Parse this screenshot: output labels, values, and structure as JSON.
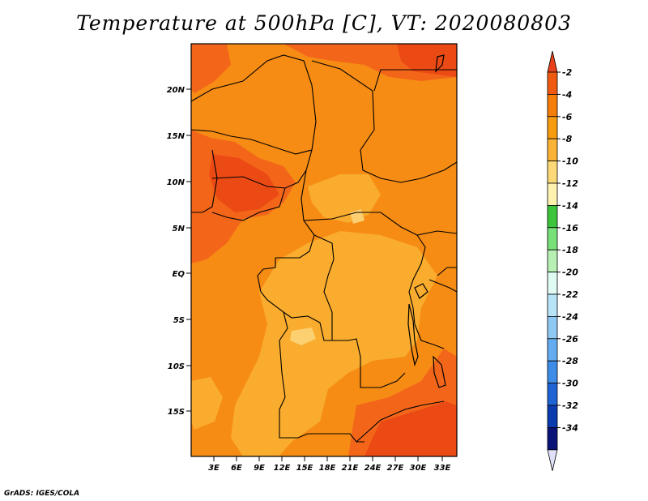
{
  "title": "Temperature at 500hPa [C], VT: 2020080803",
  "credit": "GrADS: IGES/COLA",
  "map": {
    "lat_labels": [
      "20N",
      "15N",
      "10N",
      "5N",
      "EQ",
      "5S",
      "10S",
      "15S"
    ],
    "lon_labels": [
      "3E",
      "6E",
      "9E",
      "12E",
      "15E",
      "18E",
      "21E",
      "24E",
      "27E",
      "30E",
      "33E"
    ]
  },
  "colorbar": {
    "labels": [
      "-2",
      "-4",
      "-6",
      "-8",
      "-10",
      "-12",
      "-14",
      "-16",
      "-18",
      "-20",
      "-22",
      "-24",
      "-26",
      "-28",
      "-30",
      "-32",
      "-34"
    ],
    "colors": {
      "top_triangle": "#e8401a",
      "bottom_triangle": "#e0e0f8",
      "segments": [
        "#f05a10",
        "#f57d0a",
        "#f79b10",
        "#fab435",
        "#fcd877",
        "#fff2b0",
        "#3cc43c",
        "#78e078",
        "#b8f0b4",
        "#e0fbf4",
        "#b8e4f8",
        "#90c8f4",
        "#64acf0",
        "#3c8ce8",
        "#1e64d4",
        "#0a3cb0",
        "#0a1478"
      ]
    }
  },
  "field_colors": {
    "warmest": "#ec4a14",
    "warm": "#f3661a",
    "mid": "#f68c14",
    "cool": "#f9ac2e",
    "coolest": "#fcd070"
  }
}
